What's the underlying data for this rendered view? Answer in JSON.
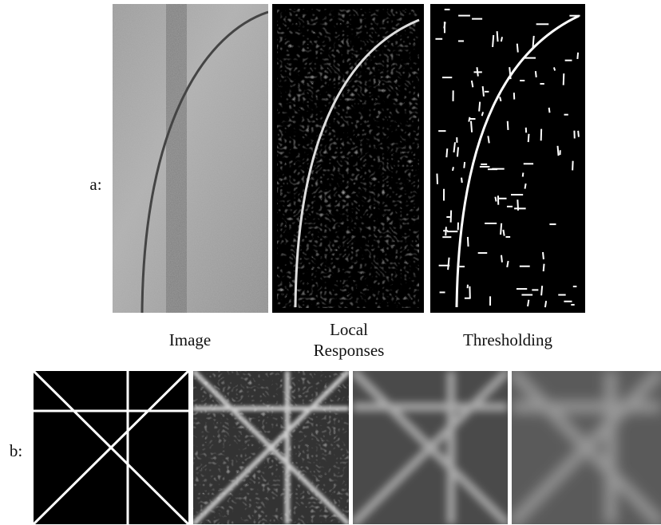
{
  "panel_a": {
    "label": "a:",
    "captions": [
      "Image",
      "Local Responses",
      "Thresholding"
    ]
  },
  "panel_b": {
    "label": "b:"
  }
}
